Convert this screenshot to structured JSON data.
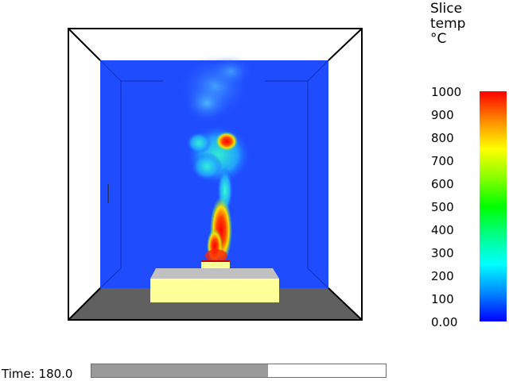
{
  "legend": {
    "title": "Slice\ntemp\n°C",
    "labels": [
      "1000",
      "900",
      "800",
      "700",
      "600",
      "500",
      "400",
      "300",
      "200",
      "100",
      "0.00"
    ],
    "colorbar_stops": [
      "#ff0000",
      "#ff8800",
      "#ffff00",
      "#88ff00",
      "#00ff00",
      "#00ff88",
      "#00ffff",
      "#0088ff",
      "#0000ff"
    ]
  },
  "scene": {
    "background_color": "#1f4cff",
    "floor_color": "#606060",
    "box_color": "#ffff99",
    "box_top_color": "#c0c0c0"
  },
  "status": {
    "time_label": "Time: 180.0",
    "progress": 0.6
  }
}
